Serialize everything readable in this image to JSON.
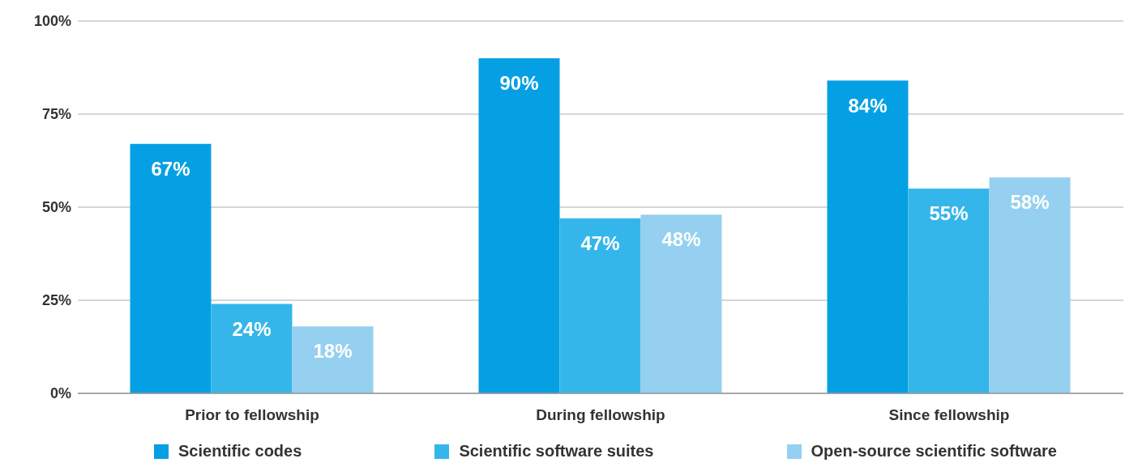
{
  "chart_data": {
    "type": "bar",
    "categories": [
      "Prior to fellowship",
      "During fellowship",
      "Since fellowship"
    ],
    "series": [
      {
        "name": "Scientific codes",
        "color": "#05a0e3",
        "values": [
          67,
          90,
          84
        ],
        "value_labels": [
          "67%",
          "90%",
          "84%"
        ]
      },
      {
        "name": "Scientific software suites",
        "color": "#35b6ea",
        "values": [
          24,
          47,
          55
        ],
        "value_labels": [
          "24%",
          "47%",
          "55%"
        ]
      },
      {
        "name": "Open-source scientific software",
        "color": "#95d0f0",
        "values": [
          18,
          48,
          58
        ],
        "value_labels": [
          "18%",
          "48%",
          "58%"
        ]
      }
    ],
    "ylim": [
      0,
      100
    ],
    "yticks": [
      {
        "value": 0,
        "label": "0%"
      },
      {
        "value": 25,
        "label": "25%"
      },
      {
        "value": 50,
        "label": "50%"
      },
      {
        "value": 75,
        "label": "75%"
      },
      {
        "value": 100,
        "label": "100%"
      }
    ],
    "grid": "y",
    "legend": "bottom"
  }
}
